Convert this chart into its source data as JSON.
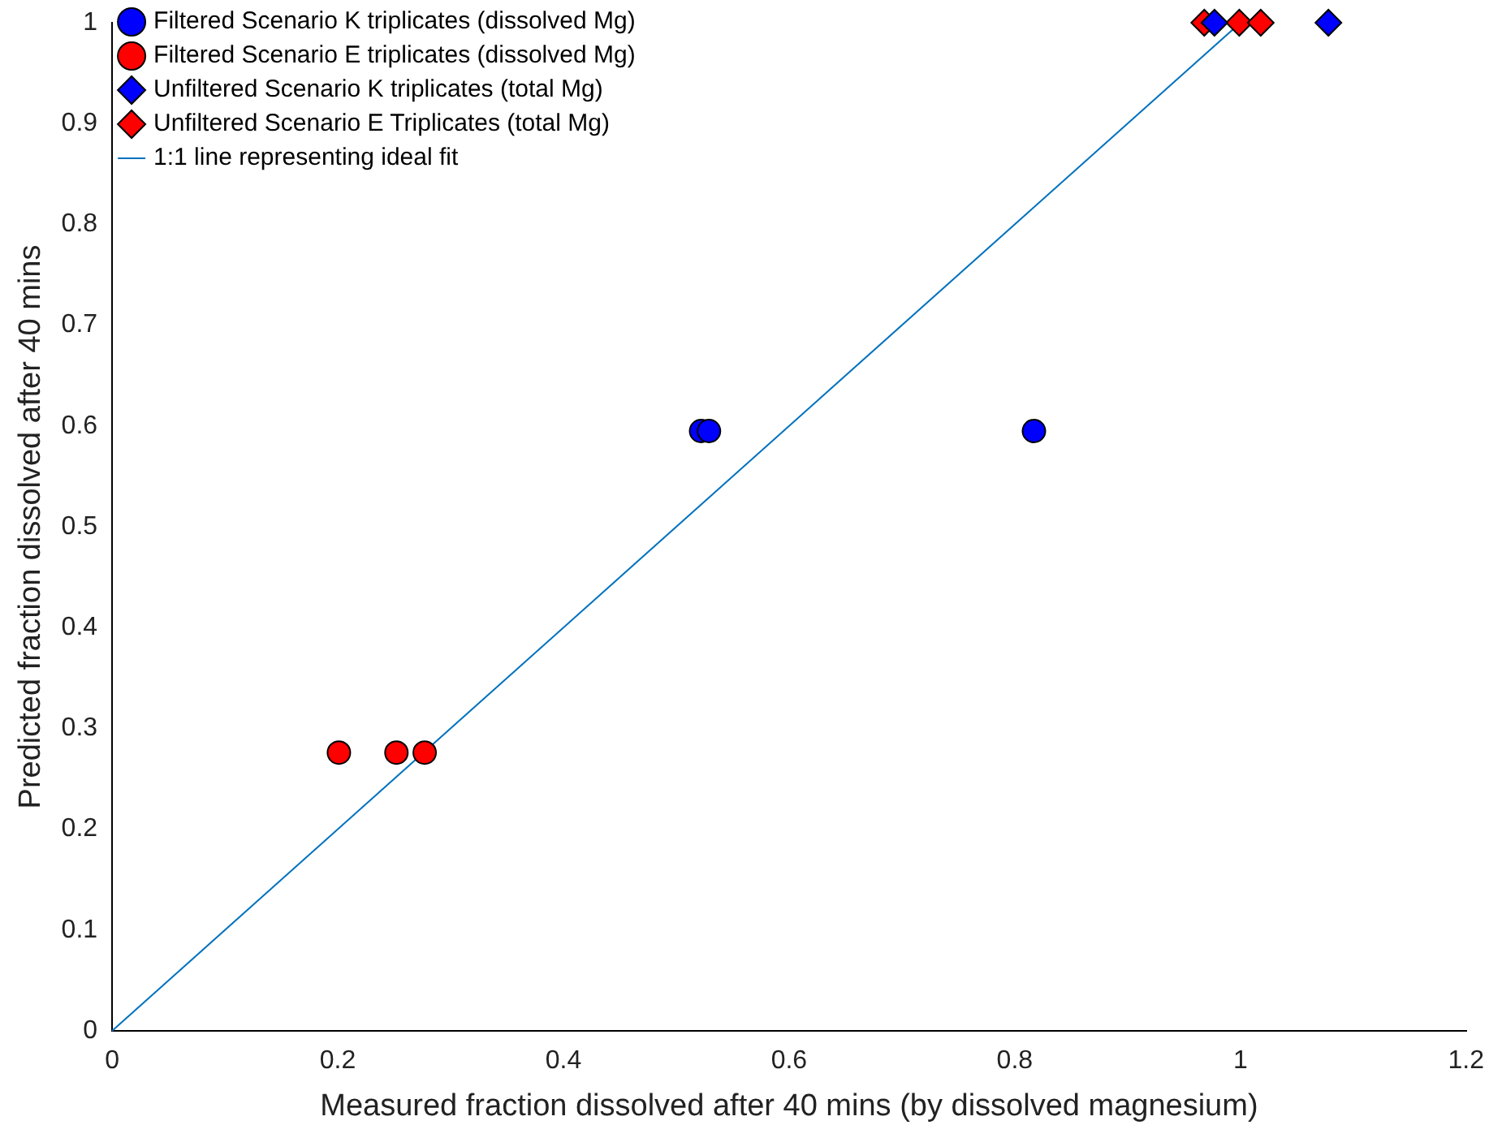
{
  "chart_data": {
    "type": "scatter",
    "xlabel": "Measured fraction dissolved after 40 mins (by dissolved magnesium)",
    "ylabel": "Predicted fraction dissolved after 40 mins",
    "xlim": [
      0,
      1.2
    ],
    "xticks": [
      0,
      0.2,
      0.4,
      0.6,
      0.8,
      1,
      1.2
    ],
    "ylim": [
      0,
      1
    ],
    "yticks": [
      0,
      0.1,
      0.2,
      0.3,
      0.4,
      0.5,
      0.6,
      0.7,
      0.8,
      0.9,
      1
    ],
    "grid": false,
    "legend": "top left",
    "series": [
      {
        "name": "Filtered Scenario K triplicates (dissolved Mg)",
        "color": "#0000ff",
        "marker": "circle",
        "x": [
          0.522,
          0.529,
          0.817
        ],
        "values": [
          0.595,
          0.595,
          0.595
        ]
      },
      {
        "name": "Filtered Scenario E triplicates (dissolved Mg)",
        "color": "#ff0000",
        "marker": "circle",
        "x": [
          0.201,
          0.252,
          0.277
        ],
        "values": [
          0.276,
          0.276,
          0.276
        ]
      },
      {
        "name": "Unfiltered Scenario K triplicates (total Mg)",
        "color": "#0000ff",
        "marker": "diamond",
        "x": [
          0.977,
          1.078
        ],
        "values": [
          1,
          1
        ]
      },
      {
        "name": "Unfiltered Scenario E Triplicates (total Mg)",
        "color": "#ff0000",
        "marker": "diamond",
        "x": [
          0.968,
          0.999,
          1.018
        ],
        "values": [
          1,
          1,
          1
        ]
      },
      {
        "name": "1:1 line representing ideal fit",
        "type": "line",
        "color": "#0072bd",
        "marker": "none",
        "line_style": "solid",
        "x": [
          0,
          1
        ],
        "values": [
          0,
          1
        ]
      }
    ]
  }
}
